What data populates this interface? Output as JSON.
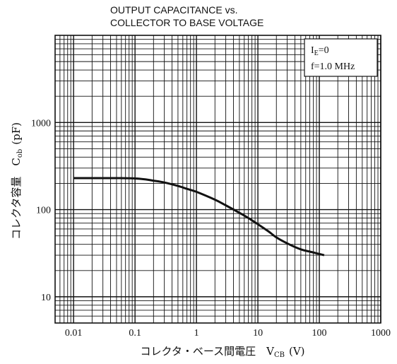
{
  "chart_data": {
    "type": "line",
    "title_lines": [
      "OUTPUT CAPACITANCE vs.",
      "COLLECTOR TO BASE VOLTAGE"
    ],
    "xlabel": "コレクタ・ベース間電圧　V",
    "xlabel_sub": "CB",
    "xlabel_unit": "(V)",
    "ylabel": "コレクタ容量　C",
    "ylabel_sub": "ob",
    "ylabel_unit": "(pF)",
    "x_scale": "log",
    "y_scale": "log",
    "xlim": [
      0.005,
      1000
    ],
    "ylim": [
      5,
      10000
    ],
    "x_ticks": [
      {
        "value": 0.01,
        "label": "0.01"
      },
      {
        "value": 0.1,
        "label": "0.1"
      },
      {
        "value": 1,
        "label": "1"
      },
      {
        "value": 10,
        "label": "10"
      },
      {
        "value": 100,
        "label": "100"
      },
      {
        "value": 1000,
        "label": "1000"
      }
    ],
    "y_ticks": [
      {
        "value": 10,
        "label": "10"
      },
      {
        "value": 100,
        "label": "100"
      },
      {
        "value": 1000,
        "label": "1000"
      }
    ],
    "grid": true,
    "legend_position": "top-right",
    "conditions": [
      {
        "main": "I",
        "sub": "E",
        "rest": "=0"
      },
      {
        "main": "f=1.0 MHz",
        "sub": "",
        "rest": ""
      }
    ],
    "series": [
      {
        "x": [
          0.01,
          0.02,
          0.05,
          0.1,
          0.15,
          0.2,
          0.3,
          0.5,
          0.7,
          1,
          2,
          3,
          5,
          7,
          10,
          15,
          20,
          30,
          50,
          70,
          100,
          120
        ],
        "y": [
          230,
          230,
          230,
          228,
          222,
          215,
          205,
          187,
          173,
          160,
          130,
          112,
          92,
          80,
          68,
          56,
          48,
          41,
          35,
          33,
          31,
          30
        ]
      }
    ]
  }
}
